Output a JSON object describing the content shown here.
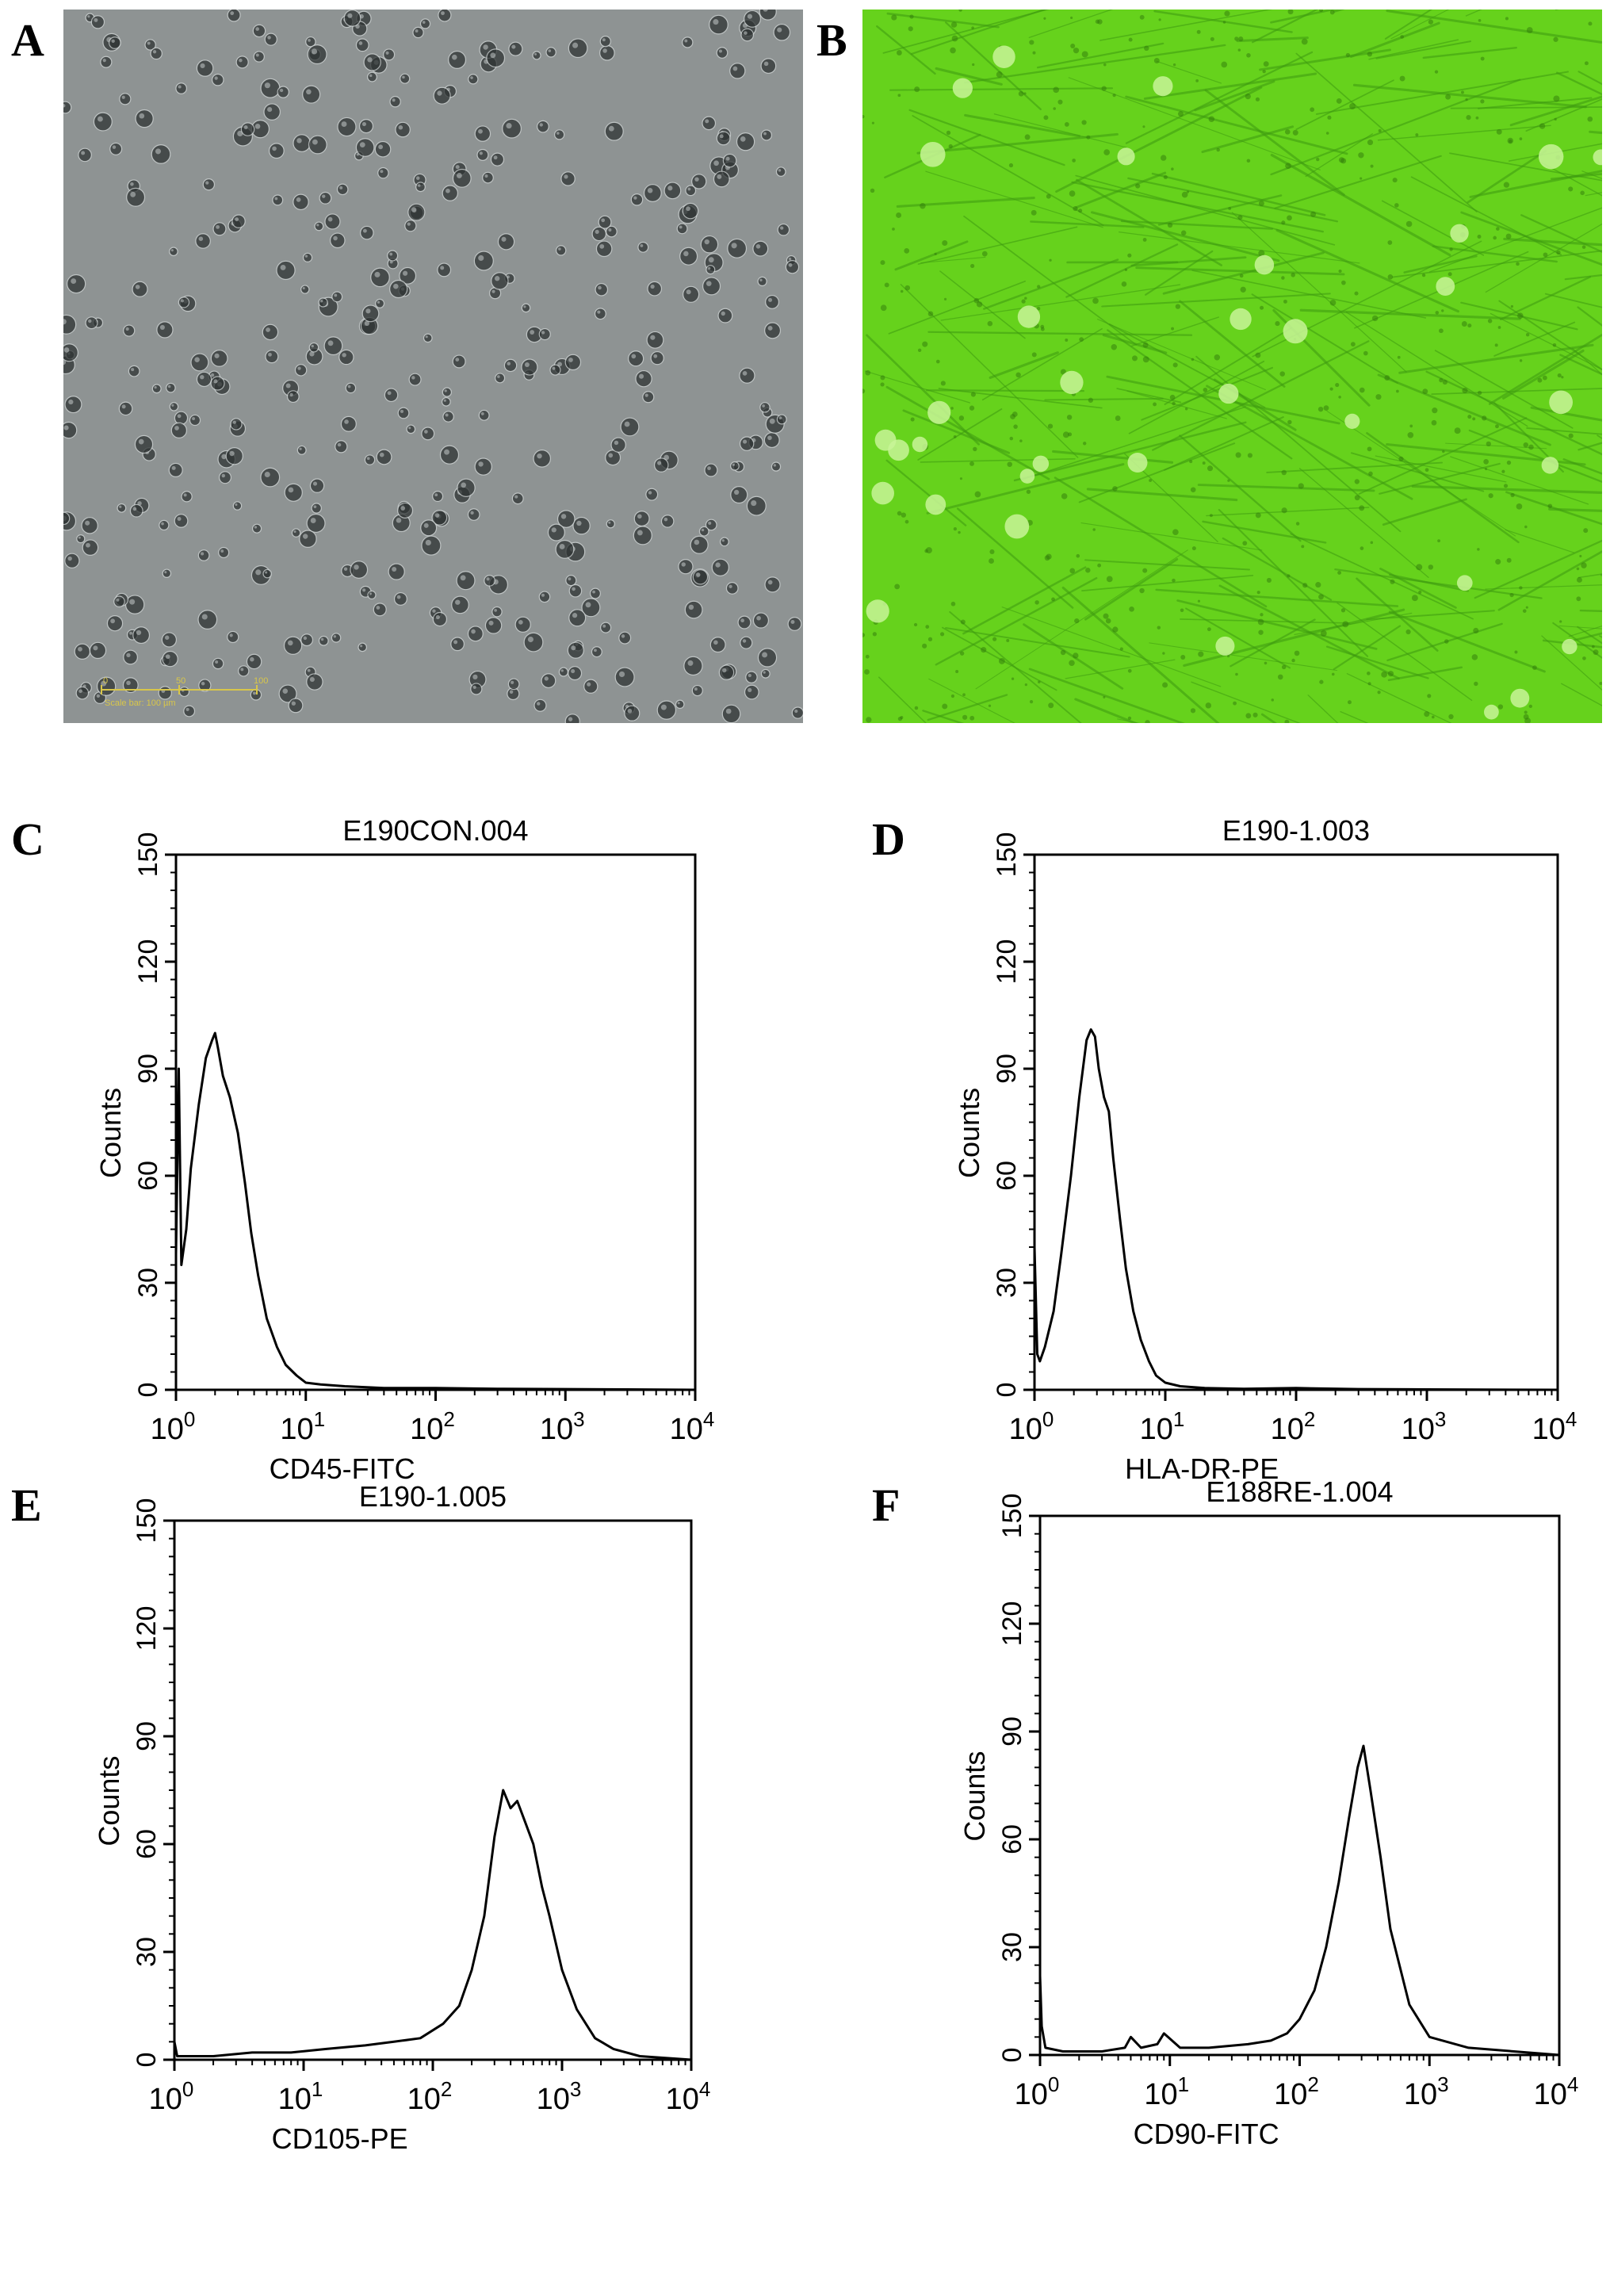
{
  "panels": [
    {
      "letter": "A"
    },
    {
      "letter": "B"
    },
    {
      "letter": "C"
    },
    {
      "letter": "D"
    },
    {
      "letter": "E"
    },
    {
      "letter": "F"
    }
  ],
  "micrographs": {
    "A": {
      "background": "#8e9393",
      "cell_color": "#2f3434",
      "scalebar_color": "#d8c64a",
      "scalebar_ticks": [
        "0",
        "50",
        "100"
      ],
      "scalebar_text": "Scale bar: 100 µm"
    },
    "B": {
      "background": "#66d21c",
      "cell_color": "#3d9a10",
      "highlight_color": "#c8f598"
    }
  },
  "chart_data": [
    {
      "panel": "C",
      "type": "line",
      "title": "E190CON.004",
      "xlabel": "CD45-FITC",
      "ylabel": "Counts",
      "xscale": "log",
      "xlim": [
        1,
        10000
      ],
      "ylim": [
        0,
        150
      ],
      "yticks": [
        "0",
        "30",
        "60",
        "90",
        "120",
        "150"
      ],
      "xtick_bases": [
        "10",
        "10",
        "10",
        "10",
        "10"
      ],
      "xtick_exps": [
        "0",
        "1",
        "2",
        "3",
        "4"
      ],
      "series": [
        {
          "x": [
            1.0,
            1.05,
            1.1,
            1.2,
            1.3,
            1.5,
            1.7,
            1.9,
            2.0,
            2.1,
            2.3,
            2.6,
            3.0,
            3.4,
            3.8,
            4.3,
            5.0,
            6.0,
            7.0,
            8.5,
            10,
            13,
            20,
            40,
            100,
            300,
            1000,
            3000,
            10000
          ],
          "y": [
            38,
            90,
            35,
            45,
            62,
            80,
            93,
            98,
            100,
            96,
            88,
            82,
            72,
            58,
            44,
            32,
            20,
            12,
            7,
            4,
            2,
            1.5,
            1,
            0.5,
            0.5,
            0.3,
            0.2,
            0.1,
            0
          ]
        }
      ]
    },
    {
      "panel": "D",
      "type": "line",
      "title": "E190-1.003",
      "xlabel": "HLA-DR-PE",
      "ylabel": "Counts",
      "xscale": "log",
      "xlim": [
        1,
        10000
      ],
      "ylim": [
        0,
        150
      ],
      "yticks": [
        "0",
        "30",
        "60",
        "90",
        "120",
        "150"
      ],
      "xtick_bases": [
        "10",
        "10",
        "10",
        "10",
        "10"
      ],
      "xtick_exps": [
        "0",
        "1",
        "2",
        "3",
        "4"
      ],
      "series": [
        {
          "x": [
            1.0,
            1.05,
            1.1,
            1.2,
            1.4,
            1.6,
            1.9,
            2.2,
            2.5,
            2.7,
            2.9,
            3.1,
            3.4,
            3.7,
            4.0,
            4.5,
            5.0,
            5.7,
            6.5,
            7.5,
            8.5,
            10,
            13,
            20,
            40,
            100,
            300,
            1000,
            10000
          ],
          "y": [
            40,
            10,
            8,
            12,
            22,
            38,
            60,
            82,
            98,
            101,
            99,
            90,
            82,
            78,
            65,
            48,
            34,
            22,
            14,
            8,
            4,
            2,
            1,
            0.5,
            0.3,
            0.5,
            0.2,
            0.1,
            0
          ]
        }
      ]
    },
    {
      "panel": "E",
      "type": "line",
      "title": "E190-1.005",
      "xlabel": "CD105-PE",
      "ylabel": "Counts",
      "xscale": "log",
      "xlim": [
        1,
        10000
      ],
      "ylim": [
        0,
        150
      ],
      "yticks": [
        "0",
        "30",
        "60",
        "90",
        "120",
        "150"
      ],
      "xtick_bases": [
        "10",
        "10",
        "10",
        "10",
        "10"
      ],
      "xtick_exps": [
        "0",
        "1",
        "2",
        "3",
        "4"
      ],
      "series": [
        {
          "x": [
            1.0,
            1.05,
            1.2,
            2,
            4,
            8,
            15,
            30,
            50,
            80,
            120,
            160,
            200,
            250,
            300,
            350,
            400,
            450,
            520,
            600,
            700,
            800,
            1000,
            1300,
            1800,
            2500,
            4000,
            10000
          ],
          "y": [
            5,
            1,
            1,
            1,
            2,
            2,
            3,
            4,
            5,
            6,
            10,
            15,
            25,
            40,
            62,
            75,
            70,
            72,
            66,
            60,
            48,
            40,
            25,
            14,
            6,
            3,
            1,
            0
          ]
        }
      ]
    },
    {
      "panel": "F",
      "type": "line",
      "title": "E188RE-1.004",
      "xlabel": "CD90-FITC",
      "ylabel": "Counts",
      "xscale": "log",
      "xlim": [
        1,
        10000
      ],
      "ylim": [
        0,
        150
      ],
      "yticks": [
        "0",
        "30",
        "60",
        "90",
        "120",
        "150"
      ],
      "xtick_bases": [
        "10",
        "10",
        "10",
        "10",
        "10"
      ],
      "xtick_exps": [
        "0",
        "1",
        "2",
        "3",
        "4"
      ],
      "series": [
        {
          "x": [
            1.0,
            1.03,
            1.1,
            1.5,
            2,
            3,
            4.5,
            5,
            6,
            8,
            9,
            12,
            20,
            40,
            60,
            80,
            100,
            130,
            160,
            200,
            240,
            280,
            310,
            350,
            420,
            500,
            700,
            1000,
            2000,
            10000
          ],
          "y": [
            22,
            8,
            2,
            1,
            1,
            1,
            2,
            5,
            2,
            3,
            6,
            2,
            2,
            3,
            4,
            6,
            10,
            18,
            30,
            48,
            66,
            80,
            86,
            74,
            55,
            35,
            14,
            5,
            2,
            0
          ]
        }
      ]
    }
  ]
}
